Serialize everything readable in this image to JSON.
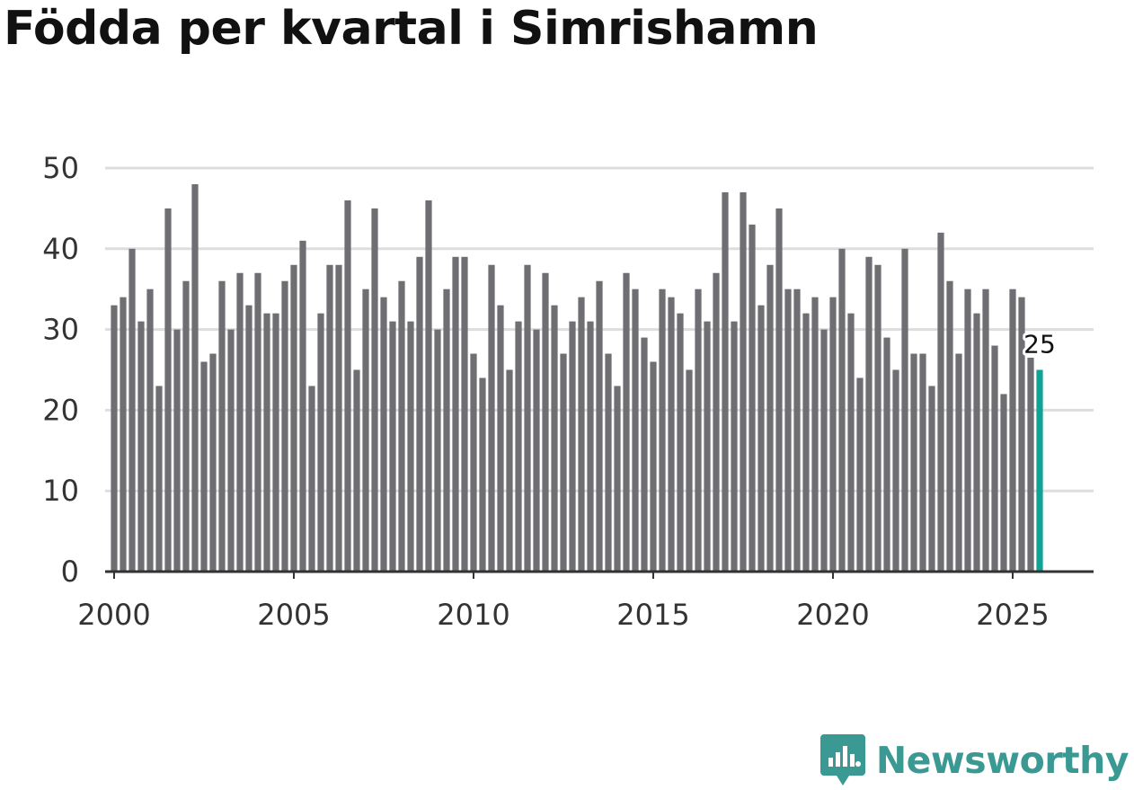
{
  "title": "Födda per kvartal i Simrishamn",
  "brand": {
    "name": "Newsworthy",
    "color": "#3a9a93"
  },
  "colors": {
    "bar": "#6f6e73",
    "highlight": "#11a296",
    "grid": "#dddddd",
    "axis": "#333333",
    "text": "#333333"
  },
  "chart_data": {
    "type": "bar",
    "title": "Födda per kvartal i Simrishamn",
    "xlabel": "",
    "ylabel": "",
    "x_start": 2000,
    "step": 0.25,
    "xlim": [
      1999.75,
      2027.25
    ],
    "x_ticks": [
      2000,
      2005,
      2010,
      2015,
      2020,
      2025
    ],
    "ylim": [
      0,
      50
    ],
    "y_ticks": [
      0,
      10,
      20,
      30,
      40,
      50
    ],
    "grid": true,
    "legend": "none",
    "values": [
      33,
      34,
      40,
      31,
      35,
      23,
      45,
      30,
      36,
      48,
      26,
      27,
      36,
      30,
      37,
      33,
      37,
      32,
      32,
      36,
      38,
      41,
      23,
      32,
      38,
      38,
      46,
      25,
      35,
      45,
      34,
      31,
      36,
      31,
      39,
      46,
      30,
      35,
      39,
      39,
      27,
      24,
      38,
      33,
      25,
      31,
      38,
      30,
      37,
      33,
      27,
      31,
      34,
      31,
      36,
      27,
      23,
      37,
      35,
      29,
      26,
      35,
      34,
      32,
      25,
      35,
      31,
      37,
      47,
      31,
      47,
      43,
      33,
      38,
      45,
      35,
      35,
      32,
      34,
      30,
      34,
      40,
      32,
      24,
      39,
      38,
      29,
      25,
      40,
      27,
      27,
      23,
      42,
      36,
      27,
      35,
      32,
      35,
      28,
      22,
      35,
      34,
      26.5,
      25
    ],
    "highlight": {
      "index": 103,
      "label": "25"
    }
  }
}
